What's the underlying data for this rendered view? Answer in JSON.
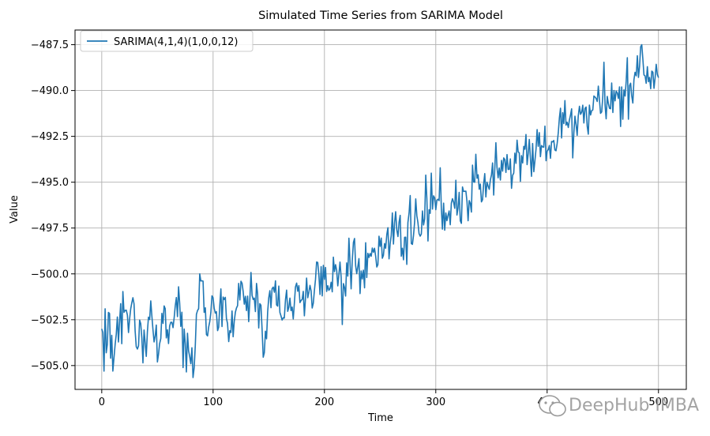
{
  "chart_data": {
    "type": "line",
    "title": "Simulated Time Series from SARIMA Model",
    "xlabel": "Time",
    "ylabel": "Value",
    "xlim": [
      -24,
      525
    ],
    "ylim": [
      -506.3,
      -486.7
    ],
    "xticks": [
      0,
      100,
      200,
      300,
      400,
      500
    ],
    "xtick_labels": [
      "0",
      "100",
      "200",
      "300",
      "400",
      "500"
    ],
    "yticks": [
      -505.0,
      -502.5,
      -500.0,
      -497.5,
      -495.0,
      -492.5,
      -490.0,
      -487.5
    ],
    "ytick_labels": [
      "−505.0",
      "−502.5",
      "−500.0",
      "−497.5",
      "−495.0",
      "−492.5",
      "−490.0",
      "−487.5"
    ],
    "grid": true,
    "legend_position": "top-left",
    "series": [
      {
        "name": "SARIMA(4,1,4)(1,0,0,12)",
        "color": "#1f77b4",
        "x_start": 0,
        "x_step": 1,
        "anchors": [
          [
            0,
            -503.0
          ],
          [
            1,
            -503.2
          ],
          [
            2,
            -505.3
          ],
          [
            3,
            -501.9
          ],
          [
            4,
            -504.3
          ],
          [
            6,
            -502.1
          ],
          [
            8,
            -504.6
          ],
          [
            10,
            -505.3
          ],
          [
            13,
            -503.3
          ],
          [
            16,
            -502.6
          ],
          [
            20,
            -502.1
          ],
          [
            24,
            -503.2
          ],
          [
            28,
            -501.3
          ],
          [
            32,
            -504.1
          ],
          [
            36,
            -503.5
          ],
          [
            40,
            -504.5
          ],
          [
            45,
            -502.3
          ],
          [
            50,
            -504.8
          ],
          [
            55,
            -502.7
          ],
          [
            60,
            -503.8
          ],
          [
            65,
            -502.4
          ],
          [
            70,
            -501.6
          ],
          [
            75,
            -503.8
          ],
          [
            80,
            -504.9
          ],
          [
            83,
            -505.1
          ],
          [
            86,
            -502.0
          ],
          [
            88,
            -500.0
          ],
          [
            92,
            -502.1
          ],
          [
            96,
            -502.9
          ],
          [
            100,
            -501.3
          ],
          [
            105,
            -502.9
          ],
          [
            110,
            -501.4
          ],
          [
            115,
            -503.1
          ],
          [
            120,
            -502.1
          ],
          [
            125,
            -500.4
          ],
          [
            130,
            -502.0
          ],
          [
            136,
            -501.4
          ],
          [
            140,
            -501.1
          ],
          [
            146,
            -504.3
          ],
          [
            150,
            -501.3
          ],
          [
            155,
            -501.0
          ],
          [
            160,
            -502.1
          ],
          [
            165,
            -501.4
          ],
          [
            170,
            -502.0
          ],
          [
            175,
            -500.5
          ],
          [
            180,
            -501.4
          ],
          [
            185,
            -501.3
          ],
          [
            190,
            -501.6
          ],
          [
            195,
            -500.1
          ],
          [
            200,
            -500.3
          ],
          [
            205,
            -500.8
          ],
          [
            210,
            -499.5
          ],
          [
            215,
            -500.2
          ],
          [
            220,
            -499.4
          ],
          [
            225,
            -499.3
          ],
          [
            230,
            -499.6
          ],
          [
            235,
            -499.8
          ],
          [
            240,
            -499.1
          ],
          [
            245,
            -498.6
          ],
          [
            250,
            -498.5
          ],
          [
            255,
            -498.6
          ],
          [
            260,
            -497.9
          ],
          [
            265,
            -497.6
          ],
          [
            270,
            -498.6
          ],
          [
            275,
            -497.2
          ],
          [
            280,
            -497.9
          ],
          [
            285,
            -497.8
          ],
          [
            290,
            -497.0
          ],
          [
            295,
            -496.7
          ],
          [
            300,
            -496.5
          ],
          [
            305,
            -496.4
          ],
          [
            310,
            -497.1
          ],
          [
            315,
            -495.9
          ],
          [
            320,
            -496.4
          ],
          [
            325,
            -495.5
          ],
          [
            330,
            -496.0
          ],
          [
            335,
            -495.0
          ],
          [
            340,
            -495.1
          ],
          [
            345,
            -495.8
          ],
          [
            350,
            -494.6
          ],
          [
            355,
            -494.2
          ],
          [
            360,
            -494.4
          ],
          [
            365,
            -494.3
          ],
          [
            370,
            -494.5
          ],
          [
            375,
            -493.4
          ],
          [
            380,
            -493.2
          ],
          [
            385,
            -493.7
          ],
          [
            390,
            -493.2
          ],
          [
            395,
            -493.0
          ],
          [
            400,
            -493.3
          ],
          [
            405,
            -492.8
          ],
          [
            410,
            -492.3
          ],
          [
            415,
            -491.8
          ],
          [
            420,
            -491.6
          ],
          [
            425,
            -491.4
          ],
          [
            430,
            -491.3
          ],
          [
            435,
            -490.9
          ],
          [
            440,
            -491.1
          ],
          [
            445,
            -490.6
          ],
          [
            450,
            -490.3
          ],
          [
            455,
            -490.7
          ],
          [
            460,
            -490.0
          ],
          [
            465,
            -489.8
          ],
          [
            470,
            -490.3
          ],
          [
            475,
            -489.6
          ],
          [
            480,
            -489.2
          ],
          [
            483,
            -488.7
          ],
          [
            485,
            -487.5
          ],
          [
            488,
            -489.2
          ],
          [
            490,
            -488.7
          ],
          [
            493,
            -489.9
          ],
          [
            495,
            -489.0
          ],
          [
            497,
            -489.3
          ],
          [
            500,
            -489.3
          ]
        ]
      }
    ]
  },
  "watermark": {
    "text": "DeepHub IMBA",
    "icon": "wechat-icon"
  }
}
